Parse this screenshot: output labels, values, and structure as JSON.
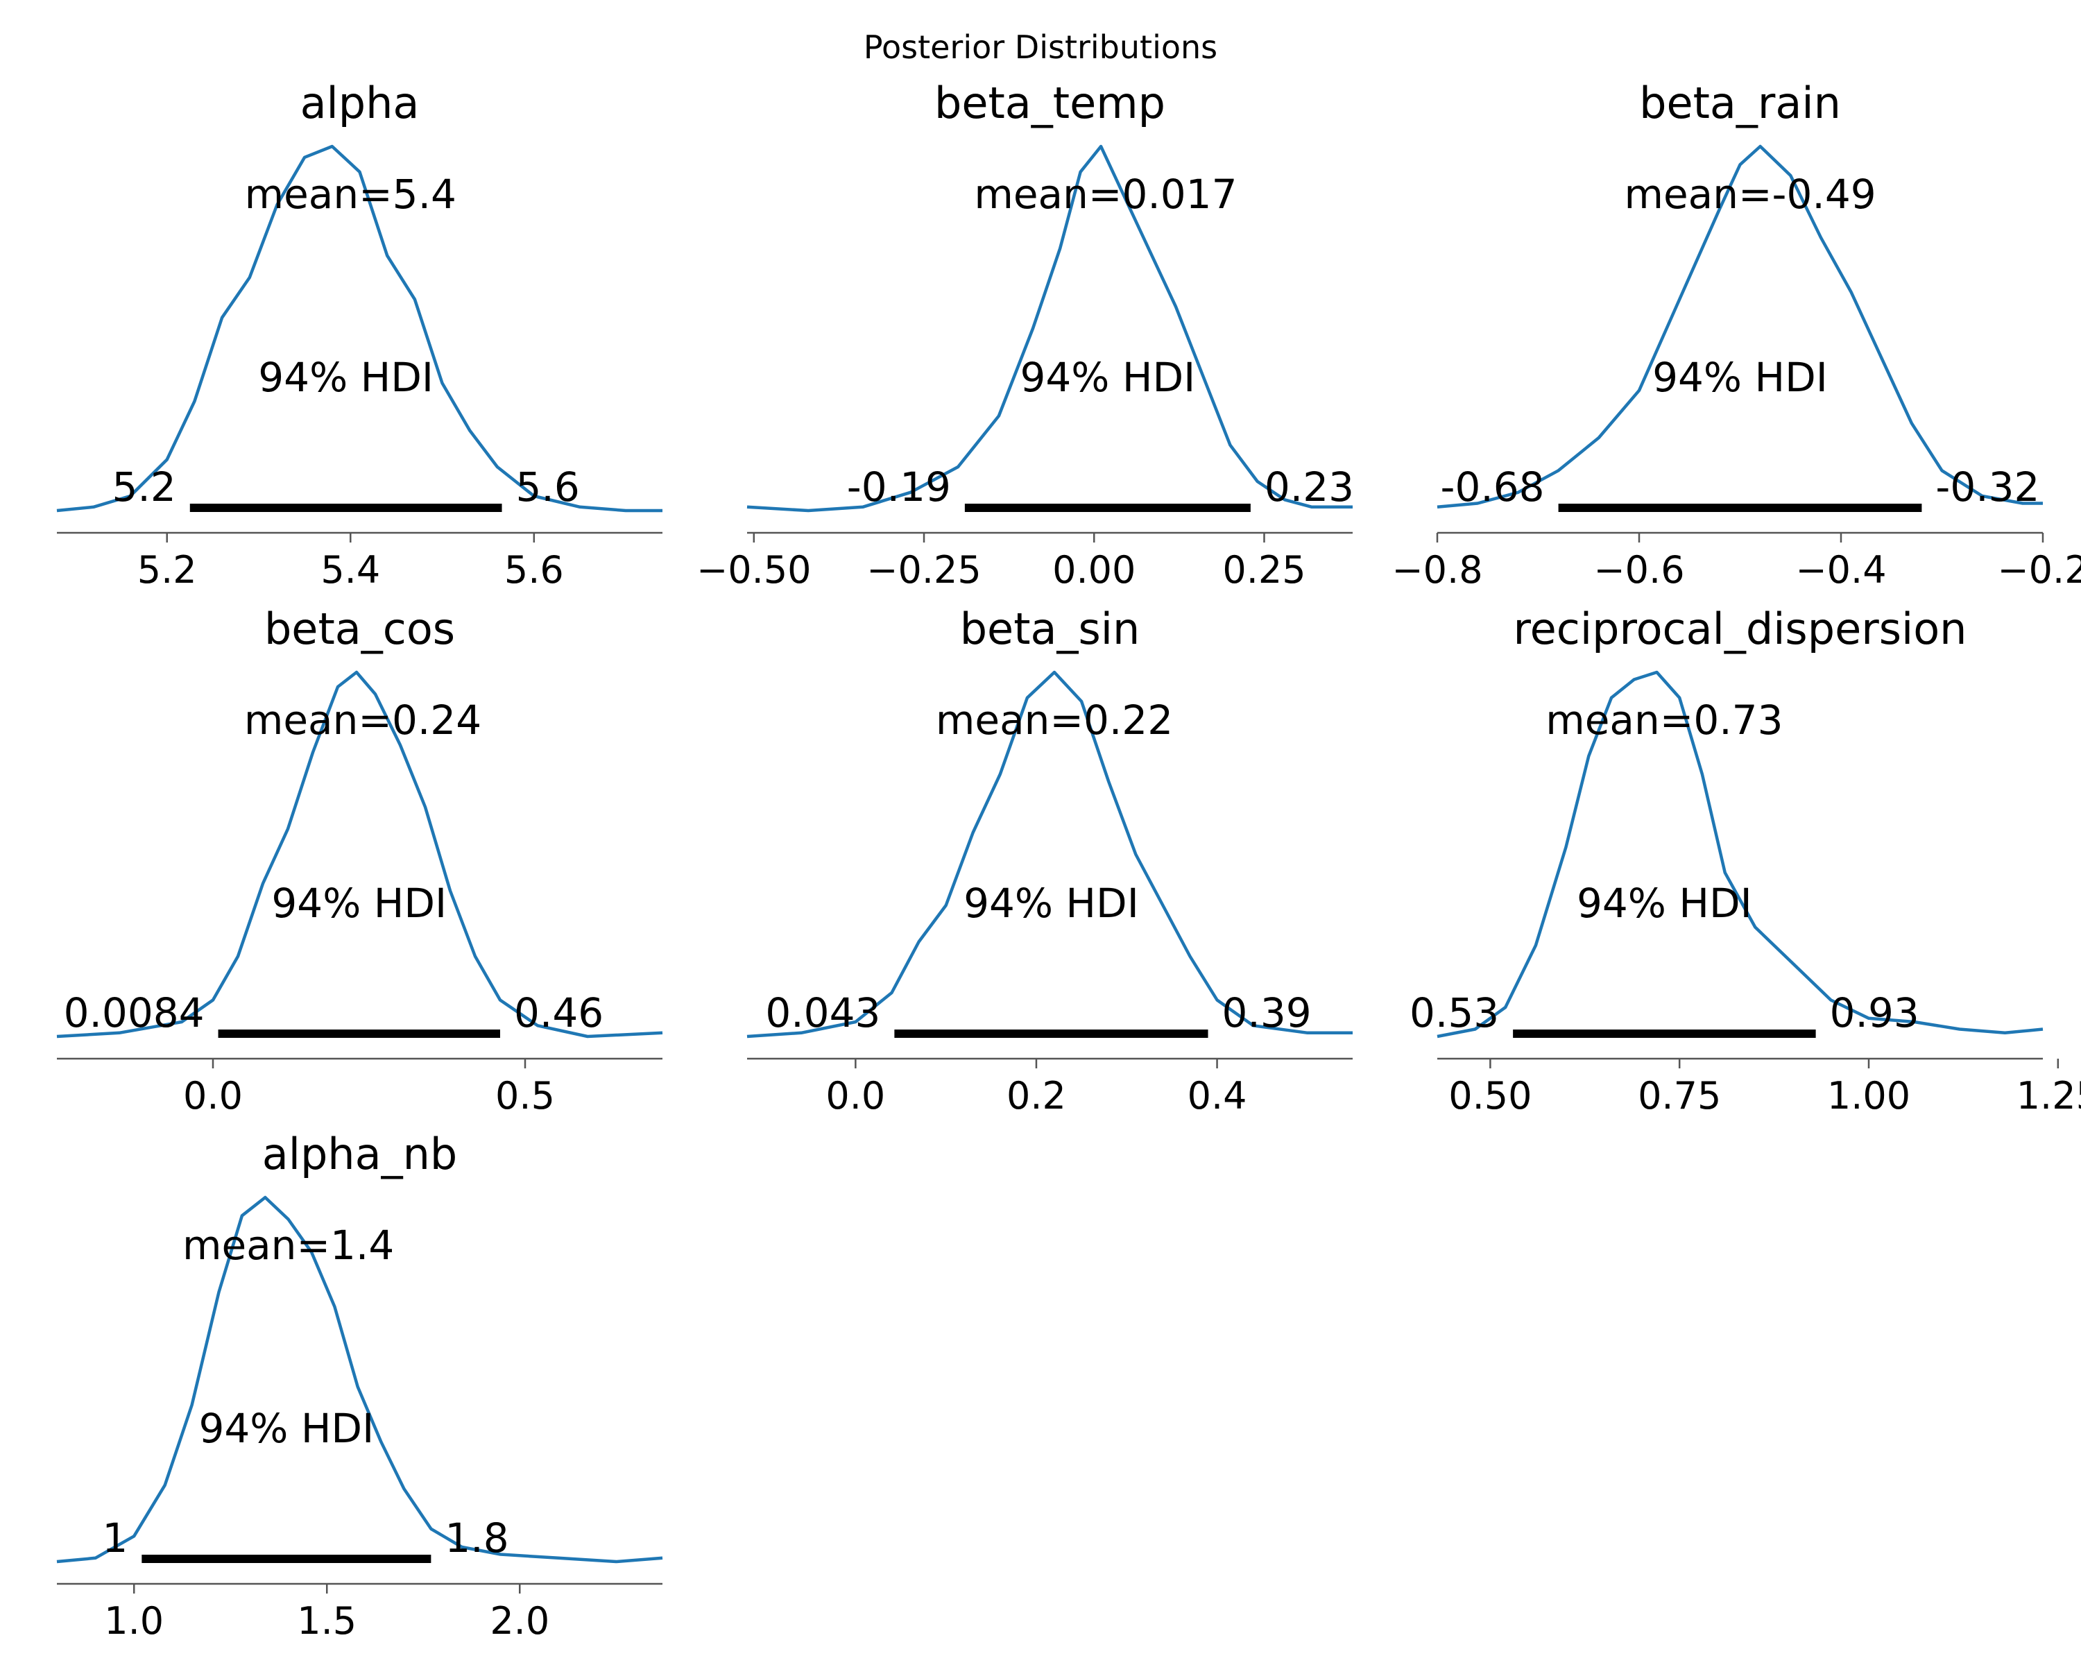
{
  "suptitle": "Posterior Distributions",
  "colors": {
    "curve": "#1f77b4",
    "hdi": "#000000",
    "axis": "#555555"
  },
  "chart_data": [
    {
      "type": "line",
      "title": "alpha",
      "xlim": [
        5.08,
        5.74
      ],
      "mean": 5.4,
      "mean_label": "mean=5.4",
      "hdi_label": "94% HDI",
      "hdi": [
        5.225,
        5.565
      ],
      "hdi_low_label": "5.2",
      "hdi_high_label": "5.6",
      "xticks": [
        5.2,
        5.4,
        5.6
      ],
      "xtick_labels": [
        "5.2",
        "5.4",
        "5.6"
      ],
      "density_x": [
        5.08,
        5.12,
        5.16,
        5.2,
        5.23,
        5.26,
        5.29,
        5.32,
        5.35,
        5.38,
        5.41,
        5.44,
        5.47,
        5.5,
        5.53,
        5.56,
        5.6,
        5.65,
        5.7,
        5.74
      ],
      "density_y": [
        0.0,
        0.01,
        0.04,
        0.14,
        0.3,
        0.53,
        0.64,
        0.84,
        0.97,
        1.0,
        0.93,
        0.7,
        0.58,
        0.35,
        0.22,
        0.12,
        0.04,
        0.01,
        0.0,
        0.0
      ]
    },
    {
      "type": "line",
      "title": "beta_temp",
      "xlim": [
        -0.51,
        0.38
      ],
      "mean": 0.017,
      "mean_label": "mean=0.017",
      "hdi_label": "94% HDI",
      "hdi": [
        -0.19,
        0.23
      ],
      "hdi_low_label": "-0.19",
      "hdi_high_label": "0.23",
      "xticks": [
        -0.5,
        -0.25,
        0.0,
        0.25
      ],
      "xtick_labels": [
        "−0.50",
        "−0.25",
        "0.00",
        "0.25"
      ],
      "density_x": [
        -0.51,
        -0.42,
        -0.34,
        -0.27,
        -0.2,
        -0.14,
        -0.09,
        -0.05,
        -0.02,
        0.01,
        0.04,
        0.08,
        0.12,
        0.16,
        0.2,
        0.24,
        0.28,
        0.32,
        0.38
      ],
      "density_y": [
        0.01,
        0.0,
        0.01,
        0.05,
        0.12,
        0.26,
        0.5,
        0.72,
        0.93,
        1.0,
        0.88,
        0.72,
        0.56,
        0.37,
        0.18,
        0.08,
        0.03,
        0.01,
        0.01
      ]
    },
    {
      "type": "line",
      "title": "beta_rain",
      "xlim": [
        -0.8,
        -0.2
      ],
      "mean": -0.49,
      "mean_label": "mean=-0.49",
      "hdi_label": "94% HDI",
      "hdi": [
        -0.68,
        -0.32
      ],
      "hdi_low_label": "-0.68",
      "hdi_high_label": "-0.32",
      "xticks": [
        -0.8,
        -0.6,
        -0.4,
        -0.2
      ],
      "xtick_labels": [
        "−0.8",
        "−0.6",
        "−0.4",
        "−0.2"
      ],
      "density_x": [
        -0.8,
        -0.76,
        -0.72,
        -0.68,
        -0.64,
        -0.6,
        -0.56,
        -0.52,
        -0.5,
        -0.48,
        -0.45,
        -0.42,
        -0.39,
        -0.36,
        -0.33,
        -0.3,
        -0.26,
        -0.22,
        -0.2
      ],
      "density_y": [
        0.01,
        0.02,
        0.05,
        0.11,
        0.2,
        0.33,
        0.58,
        0.83,
        0.95,
        1.0,
        0.92,
        0.75,
        0.6,
        0.42,
        0.24,
        0.11,
        0.04,
        0.02,
        0.02
      ]
    },
    {
      "type": "line",
      "title": "beta_cos",
      "xlim": [
        -0.25,
        0.72
      ],
      "mean": 0.24,
      "mean_label": "mean=0.24",
      "hdi_label": "94% HDI",
      "hdi": [
        0.0084,
        0.46
      ],
      "hdi_low_label": "0.0084",
      "hdi_high_label": "0.46",
      "xticks": [
        0.0,
        0.5
      ],
      "xtick_labels": [
        "0.0",
        "0.5"
      ],
      "density_x": [
        -0.25,
        -0.15,
        -0.05,
        0.0,
        0.04,
        0.08,
        0.12,
        0.16,
        0.2,
        0.23,
        0.26,
        0.3,
        0.34,
        0.38,
        0.42,
        0.46,
        0.52,
        0.6,
        0.72
      ],
      "density_y": [
        0.0,
        0.01,
        0.04,
        0.1,
        0.22,
        0.42,
        0.57,
        0.78,
        0.96,
        1.0,
        0.94,
        0.8,
        0.63,
        0.4,
        0.22,
        0.1,
        0.03,
        0.0,
        0.01
      ]
    },
    {
      "type": "line",
      "title": "beta_sin",
      "xlim": [
        -0.12,
        0.55
      ],
      "mean": 0.22,
      "mean_label": "mean=0.22",
      "hdi_label": "94% HDI",
      "hdi": [
        0.043,
        0.39
      ],
      "hdi_low_label": "0.043",
      "hdi_high_label": "0.39",
      "xticks": [
        0.0,
        0.2,
        0.4
      ],
      "xtick_labels": [
        "0.0",
        "0.2",
        "0.4"
      ],
      "density_x": [
        -0.12,
        -0.06,
        0.0,
        0.04,
        0.07,
        0.1,
        0.13,
        0.16,
        0.19,
        0.22,
        0.25,
        0.28,
        0.31,
        0.34,
        0.37,
        0.4,
        0.44,
        0.5,
        0.55
      ],
      "density_y": [
        0.0,
        0.01,
        0.04,
        0.12,
        0.26,
        0.36,
        0.56,
        0.72,
        0.93,
        1.0,
        0.92,
        0.7,
        0.5,
        0.36,
        0.22,
        0.1,
        0.03,
        0.01,
        0.01
      ]
    },
    {
      "type": "line",
      "title": "reciprocal_dispersion",
      "xlim": [
        0.43,
        1.23
      ],
      "mean": 0.73,
      "mean_label": "mean=0.73",
      "hdi_label": "94% HDI",
      "hdi": [
        0.53,
        0.93
      ],
      "hdi_low_label": "0.53",
      "hdi_high_label": "0.93",
      "xticks": [
        0.5,
        0.75,
        1.0,
        1.25
      ],
      "xtick_labels": [
        "0.50",
        "0.75",
        "1.00",
        "1.25"
      ],
      "density_x": [
        0.43,
        0.48,
        0.52,
        0.56,
        0.6,
        0.63,
        0.66,
        0.69,
        0.72,
        0.75,
        0.78,
        0.81,
        0.85,
        0.9,
        0.95,
        1.0,
        1.06,
        1.12,
        1.18,
        1.23
      ],
      "density_y": [
        0.0,
        0.02,
        0.08,
        0.25,
        0.52,
        0.77,
        0.93,
        0.98,
        1.0,
        0.93,
        0.72,
        0.45,
        0.3,
        0.2,
        0.1,
        0.05,
        0.04,
        0.02,
        0.01,
        0.02
      ]
    },
    {
      "type": "line",
      "title": "alpha_nb",
      "xlim": [
        0.8,
        2.37
      ],
      "mean": 1.4,
      "mean_label": "mean=1.4",
      "hdi_label": "94% HDI",
      "hdi": [
        1.02,
        1.77
      ],
      "hdi_low_label": "1",
      "hdi_high_label": "1.8",
      "xticks": [
        1.0,
        1.5,
        2.0
      ],
      "xtick_labels": [
        "1.0",
        "1.5",
        "2.0"
      ],
      "density_x": [
        0.8,
        0.9,
        1.0,
        1.08,
        1.15,
        1.22,
        1.28,
        1.34,
        1.4,
        1.46,
        1.52,
        1.58,
        1.64,
        1.7,
        1.77,
        1.85,
        1.95,
        2.1,
        2.25,
        2.37
      ],
      "density_y": [
        0.0,
        0.01,
        0.07,
        0.21,
        0.43,
        0.74,
        0.95,
        1.0,
        0.94,
        0.85,
        0.7,
        0.48,
        0.33,
        0.2,
        0.09,
        0.04,
        0.02,
        0.01,
        0.0,
        0.01
      ]
    }
  ]
}
